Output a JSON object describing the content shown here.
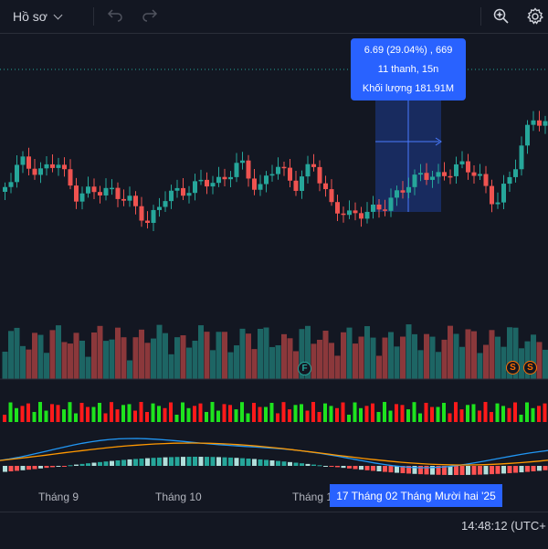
{
  "topbar": {
    "profile_label": "Hồ sơ"
  },
  "tooltip": {
    "line1": "6.69 (29.04%) , 669",
    "line2": "11 thanh, 15n",
    "line3": "Khối lượng 181.91M"
  },
  "time_axis": {
    "labels": [
      "Tháng 9",
      "Tháng 10",
      "Tháng 1"
    ],
    "range_label": "17 Tháng  02 Tháng Mười hai '25"
  },
  "status": {
    "clock": "14:48:12 (UTC+"
  },
  "markers": {
    "f": "F",
    "s1": "S",
    "s2": "S"
  },
  "colors": {
    "background": "#131722",
    "up": "#26a69a",
    "down": "#ef5350",
    "accent": "#2962ff",
    "macd_up": "#1ee31e",
    "macd_down": "#ff1a1a",
    "line_blue": "#2196f3",
    "line_orange": "#ff9800"
  }
}
